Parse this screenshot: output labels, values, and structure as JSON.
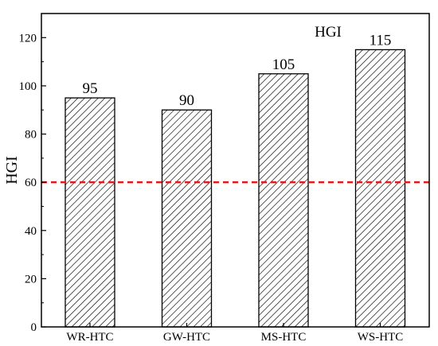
{
  "chart_data": {
    "type": "bar",
    "categories": [
      "WR-HTC",
      "GW-HTC",
      "MS-HTC",
      "WS-HTC"
    ],
    "values": [
      95,
      90,
      105,
      115
    ],
    "data_labels": [
      "95",
      "90",
      "105",
      "115"
    ],
    "ylabel": "HGI",
    "legend": "HGI",
    "legend_position": "top-right",
    "ylim": [
      0,
      130
    ],
    "yticks": [
      0,
      20,
      40,
      60,
      80,
      100,
      120
    ],
    "reference_line": {
      "y": 60,
      "color": "#e31a1c",
      "style": "dashed"
    },
    "bar_fill": "hatched",
    "grid": false
  }
}
